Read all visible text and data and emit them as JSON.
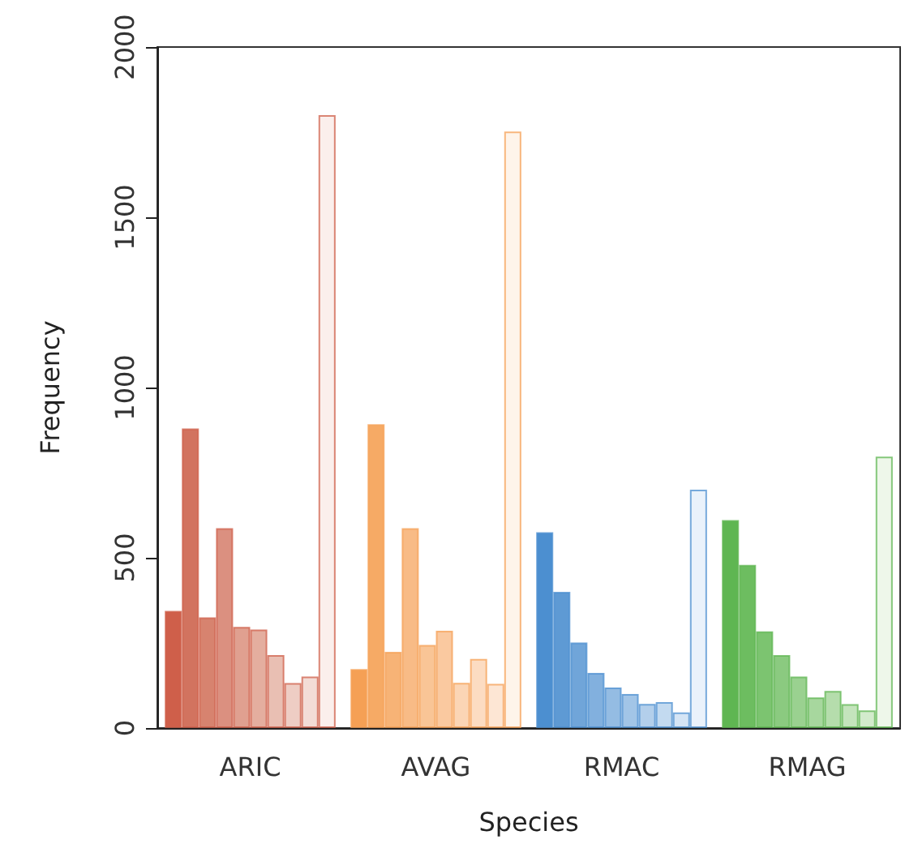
{
  "chart_data": {
    "type": "bar",
    "xlabel": "Species",
    "ylabel": "Frequency",
    "categories": [
      "ARIC",
      "AVAG",
      "RMAC",
      "RMAG"
    ],
    "ylim": [
      0,
      2000
    ],
    "yticks": [
      0,
      500,
      1000,
      1500,
      2000
    ],
    "grid": false,
    "series": [
      {
        "colors": [
          "#cf5f4a",
          "#f5a055",
          "#4c8fd0",
          "#5fb652"
        ],
        "values": [
          344,
          173,
          575,
          611
        ]
      },
      {
        "colors": [
          "#d2735f",
          "#f6aa65",
          "#5e9ad4",
          "#6dbd60"
        ],
        "values": [
          880,
          892,
          400,
          479
        ]
      },
      {
        "colors": [
          "#d7836f",
          "#f7b376",
          "#70a5d9",
          "#7cc470"
        ],
        "values": [
          325,
          224,
          251,
          284
        ]
      },
      {
        "colors": [
          "#db9080",
          "#f8bb86",
          "#82b0de",
          "#8bca80"
        ],
        "values": [
          587,
          587,
          162,
          214
        ]
      },
      {
        "colors": [
          "#e0a090",
          "#f9c596",
          "#94bce3",
          "#9ad190"
        ],
        "values": [
          297,
          244,
          119,
          151
        ]
      },
      {
        "colors": [
          "#e4ae9f",
          "#fac9a0",
          "#a2c5e7",
          "#a7d79e"
        ],
        "values": [
          289,
          286,
          100,
          90
        ]
      },
      {
        "colors": [
          "#e9bfb3",
          "#fbd5b5",
          "#b3cfeb",
          "#b5ddac"
        ],
        "values": [
          214,
          133,
          71,
          109
        ]
      },
      {
        "colors": [
          "#eecdc4",
          "#fcdcc2",
          "#c3daf0",
          "#c4e4bc"
        ],
        "values": [
          132,
          203,
          76,
          70
        ]
      },
      {
        "colors": [
          "#f3dcd6",
          "#fde6d4",
          "#d5e5f5",
          "#d3ebcc"
        ],
        "values": [
          151,
          130,
          46,
          52
        ]
      },
      {
        "colors": [
          "#fbefec",
          "#fef4ea",
          "#eaf2fb",
          "#eef7ea"
        ],
        "values": [
          1800,
          1752,
          700,
          797
        ]
      }
    ]
  }
}
